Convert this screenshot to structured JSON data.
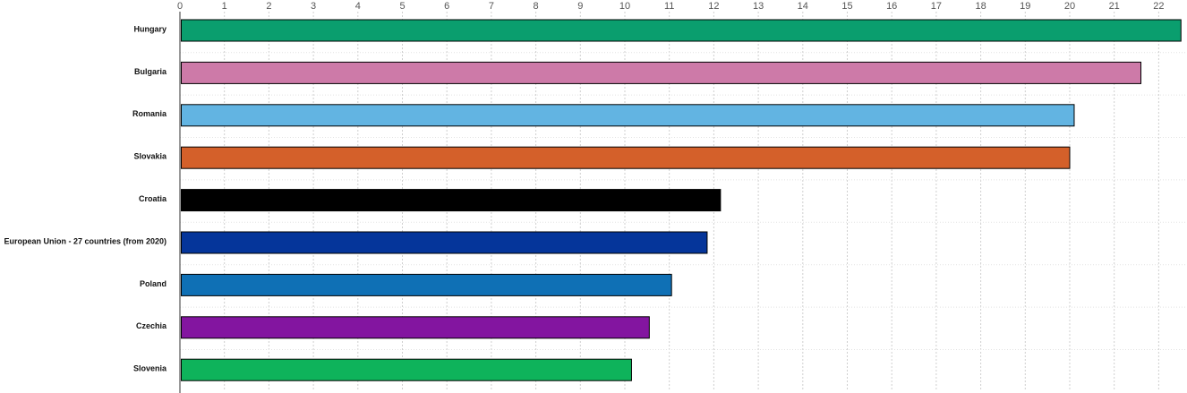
{
  "chart_data": {
    "type": "bar",
    "orientation": "horizontal",
    "categories": [
      "Hungary",
      "Bulgaria",
      "Romania",
      "Slovakia",
      "Croatia",
      "European Union - 27 countries (from 2020)",
      "Poland",
      "Czechia",
      "Slovenia"
    ],
    "values": [
      22.5,
      21.6,
      20.1,
      20.0,
      12.15,
      11.85,
      11.05,
      10.55,
      10.15
    ],
    "colors": [
      "#0a9e6e",
      "#cd7aa8",
      "#62b4e2",
      "#d4602a",
      "#000000",
      "#05359a",
      "#0f70b5",
      "#8315a0",
      "#0eb35b"
    ],
    "xticks": [
      0,
      1,
      2,
      3,
      4,
      5,
      6,
      7,
      8,
      9,
      10,
      11,
      12,
      13,
      14,
      15,
      16,
      17,
      18,
      19,
      20,
      21,
      22
    ],
    "xlim": [
      0,
      22.5
    ],
    "grid": true,
    "axis_position": "top",
    "title": "",
    "xlabel": "",
    "ylabel": ""
  }
}
